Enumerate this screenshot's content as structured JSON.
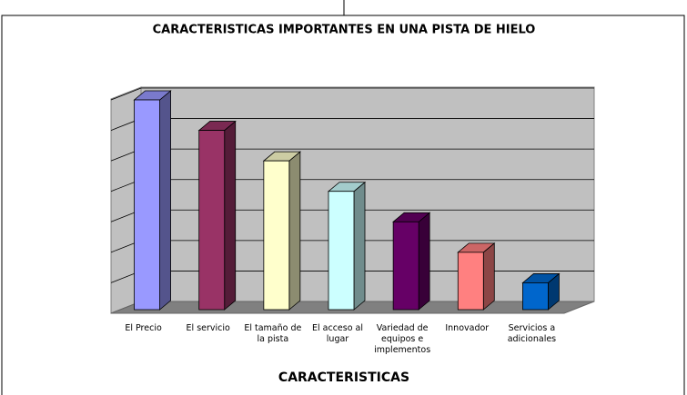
{
  "chart_data": {
    "type": "bar3d",
    "title": "CARACTERISTICAS IMPORTANTES EN UNA PISTA DE HIELO",
    "xlabel": "CARACTERISTICAS",
    "categories": [
      "El Precio",
      "El servicio",
      "El tamaño de la pista",
      "El acceso al lugar",
      "Variedad de equipos e implementos",
      "Innovador",
      "Servicios a adicionales"
    ],
    "values": [
      7,
      6,
      5,
      4,
      3,
      2,
      1
    ],
    "colors": [
      "#9999ff",
      "#993366",
      "#ffffcc",
      "#ccffff",
      "#660066",
      "#ff8080",
      "#0066cc"
    ],
    "ylim": [
      0,
      7
    ],
    "yticks": [
      0,
      1,
      2,
      3,
      4,
      5,
      6,
      7
    ],
    "grid": true
  }
}
